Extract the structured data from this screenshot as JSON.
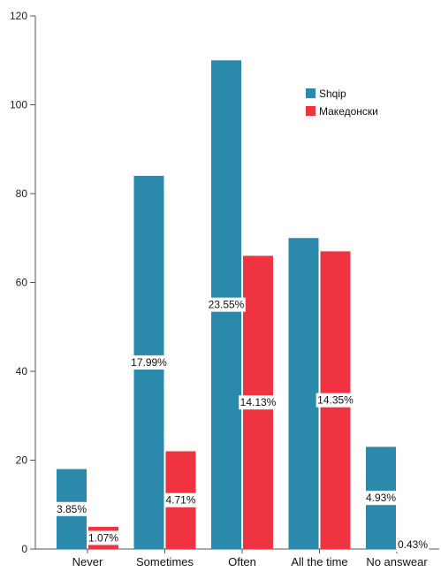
{
  "chart_data": {
    "type": "bar",
    "categories": [
      "Never",
      "Sometimes",
      "Often",
      "All the time",
      "No answear"
    ],
    "series": [
      {
        "name": "Shqip",
        "color": "#2b8aab",
        "values": [
          18,
          84,
          110,
          70,
          23
        ],
        "labels": [
          "3.85%",
          "17.99%",
          "23.55%",
          "",
          "4.93%"
        ]
      },
      {
        "name": "Македонски",
        "color": "#ef3340",
        "values": [
          5,
          22,
          66,
          67,
          2
        ],
        "labels": [
          "1.07%",
          "4.71%",
          "14.13%",
          "14.35%",
          "0.43%"
        ]
      }
    ],
    "ylim": [
      0,
      120
    ],
    "yticks": [
      "0",
      "20",
      "40",
      "60",
      "80",
      "100",
      "120"
    ],
    "legend_position": "top-right",
    "grid": false
  }
}
